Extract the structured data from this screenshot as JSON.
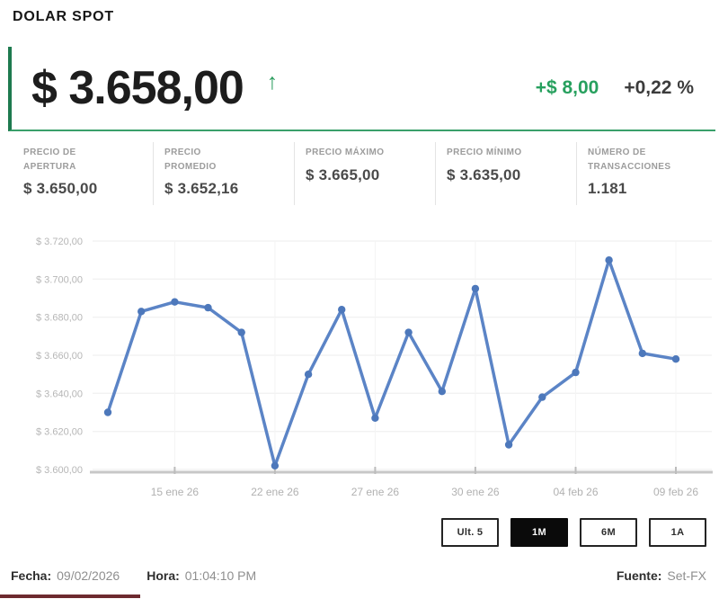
{
  "title": "DOLAR SPOT",
  "icons": {
    "up_arrow": "↑"
  },
  "price": {
    "value": "$ 3.658,00",
    "direction": "up",
    "change_abs": "+$ 8,00",
    "change_pct": "+0,22 %"
  },
  "stats": [
    {
      "label": "PRECIO DE APERTURA",
      "value": "$ 3.650,00"
    },
    {
      "label": "PRECIO PROMEDIO",
      "value": "$ 3.652,16"
    },
    {
      "label": "PRECIO MÁXIMO",
      "value": "$ 3.665,00"
    },
    {
      "label": "PRECIO MÍNIMO",
      "value": "$ 3.635,00"
    },
    {
      "label": "NÚMERO DE TRANSACCIONES",
      "value": "1.181"
    }
  ],
  "chart_data": {
    "type": "line",
    "title": "",
    "xlabel": "",
    "ylabel": "",
    "values": [
      3630,
      3683,
      3688,
      3685,
      3672,
      3602,
      3650,
      3684,
      3627,
      3672,
      3641,
      3695,
      3613,
      3638,
      3651,
      3710,
      3661,
      3658
    ],
    "ylim": [
      3600,
      3720
    ],
    "grid": true,
    "legend": "none",
    "line_color": "#5b84c6",
    "marker_color": "#4d78bb",
    "y_ticks": [
      {
        "v": 3720,
        "label": "$ 3.720,00"
      },
      {
        "v": 3700,
        "label": "$ 3.700,00"
      },
      {
        "v": 3680,
        "label": "$ 3.680,00"
      },
      {
        "v": 3660,
        "label": "$ 3.660,00"
      },
      {
        "v": 3640,
        "label": "$ 3.640,00"
      },
      {
        "v": 3620,
        "label": "$ 3.620,00"
      },
      {
        "v": 3600,
        "label": "$ 3.600,00"
      }
    ],
    "x_ticks": [
      {
        "i": 2,
        "label": "15 ene 26"
      },
      {
        "i": 5,
        "label": "22 ene 26"
      },
      {
        "i": 8,
        "label": "27 ene 26"
      },
      {
        "i": 11,
        "label": "30 ene 26"
      },
      {
        "i": 14,
        "label": "04 feb 26"
      },
      {
        "i": 17,
        "label": "09 feb 26"
      }
    ]
  },
  "ranges": [
    {
      "label": "Ult. 5",
      "active": false
    },
    {
      "label": "1M",
      "active": true
    },
    {
      "label": "6M",
      "active": false
    },
    {
      "label": "1A",
      "active": false
    }
  ],
  "footer": {
    "date_label": "Fecha:",
    "date_value": "09/02/2026",
    "time_label": "Hora:",
    "time_value": "01:04:10 PM",
    "source_label": "Fuente:",
    "source_value": "Set-FX"
  },
  "colors": {
    "accent_green": "#2e9e60",
    "line_blue": "#5b84c6",
    "active_button_bg": "#0a0a0a",
    "bottom_accent_red": "#6d2a2f"
  }
}
